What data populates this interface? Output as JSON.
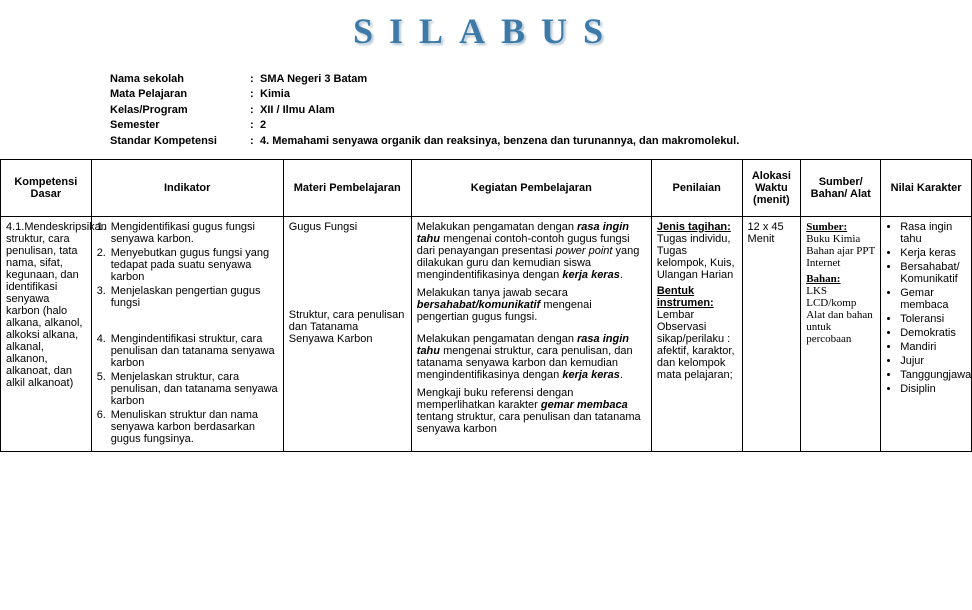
{
  "title": "SILABUS",
  "header": {
    "rows": [
      {
        "label": "Nama sekolah",
        "value": "SMA Negeri 3 Batam"
      },
      {
        "label": "Mata Pelajaran",
        "value": "Kimia"
      },
      {
        "label": "Kelas/Program",
        "value": "XII / Ilmu Alam"
      },
      {
        "label": "Semester",
        "value": "2"
      },
      {
        "label": "Standar Kompetensi",
        "value": "4. Memahami senyawa organik dan reaksinya, benzena dan turunannya, dan makromolekul."
      }
    ]
  },
  "table": {
    "headers": [
      "Kompetensi Dasar",
      "Indikator",
      "Materi Pembelajaran",
      "Kegiatan Pembelajaran",
      "Penilaian",
      "Alokasi Waktu (menit)",
      "Sumber/ Bahan/ Alat",
      "Nilai Karakter"
    ],
    "row": {
      "kd": "4.1.Mendeskripsikan struktur, cara penulisan, tata nama, sifat, kegunaan, dan identifikasi senyawa karbon (halo alkana, alkanol, alkoksi alkana, alkanal, alkanon, alkanoat, dan alkil alkanoat)",
      "indikator": [
        "Mengidentifikasi gugus fungsi senyawa karbon.",
        "Menyebutkan gugus fungsi yang tedapat pada suatu senyawa karbon",
        "Menjelaskan pengertian gugus fungsi",
        "Mengindentifikasi struktur, cara penulisan dan tatanama senyawa karbon",
        "Menjelaskan struktur, cara penulisan, dan tatanama senyawa karbon",
        "Menuliskan struktur dan nama senyawa karbon berdasarkan gugus fungsinya."
      ],
      "materi1": "Gugus Fungsi",
      "materi2": "Struktur, cara penulisan dan Tatanama Senyawa Karbon",
      "alokasi": "12 x 45 Menit",
      "penilaian": {
        "jenis_label": "Jenis tagihan:",
        "jenis_items": "Tugas individu, Tugas kelompok, Kuis, Ulangan Harian",
        "bentuk_label": "Bentuk instrumen:",
        "bentuk_items": "Lembar Observasi sikap/perilaku : afektif, karaktor, dan kelompok mata pelajaran;"
      },
      "sumber": {
        "sumber_label": "Sumber:",
        "sumber_items": "Buku Kimia Bahan ajar PPT Internet",
        "bahan_label": "Bahan:",
        "bahan_items": "LKS LCD/komp Alat dan bahan untuk percobaan"
      },
      "nilai": [
        "Rasa ingin tahu",
        "Kerja keras",
        "Bersahabat/ Komunikatif",
        "Gemar membaca",
        "Toleransi",
        "Demokratis",
        "Mandiri",
        "Jujur",
        "Tanggungjawab",
        "Disiplin"
      ]
    }
  }
}
